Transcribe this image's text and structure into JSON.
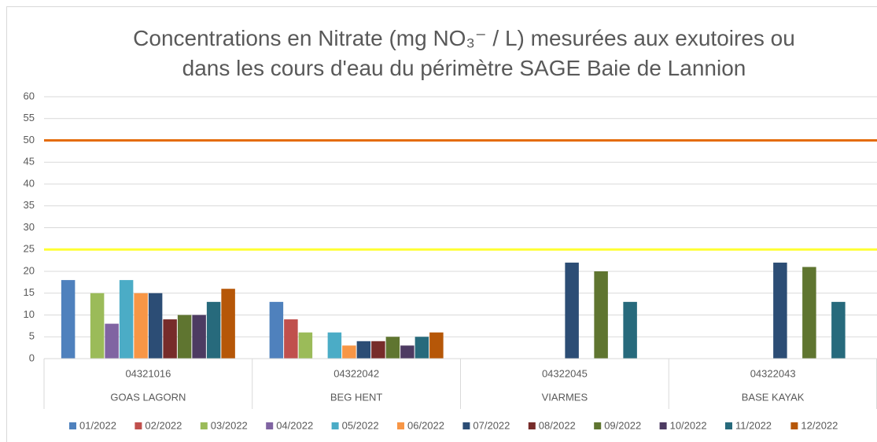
{
  "chart_data": {
    "type": "bar",
    "title": "Concentrations en Nitrate (mg NO₃⁻ / L) mesurées aux exutoires ou dans les cours d'eau du périmètre SAGE Baie de Lannion",
    "categories": [
      "04321016",
      "04322042",
      "04322045",
      "04322043"
    ],
    "category_groups": [
      "GOAS LAGORN",
      "BEG HENT",
      "VIARMES",
      "BASE KAYAK"
    ],
    "series": [
      {
        "name": "01/2022",
        "color": "#4f81bd",
        "values": [
          18,
          13,
          null,
          null
        ]
      },
      {
        "name": "02/2022",
        "color": "#c0504d",
        "values": [
          null,
          9,
          null,
          null
        ]
      },
      {
        "name": "03/2022",
        "color": "#9bbb59",
        "values": [
          15,
          6,
          null,
          null
        ]
      },
      {
        "name": "04/2022",
        "color": "#8064a2",
        "values": [
          8,
          null,
          null,
          null
        ]
      },
      {
        "name": "05/2022",
        "color": "#4bacc6",
        "values": [
          18,
          6,
          null,
          null
        ]
      },
      {
        "name": "06/2022",
        "color": "#f79646",
        "values": [
          15,
          3,
          null,
          null
        ]
      },
      {
        "name": "07/2022",
        "color": "#2c4d75",
        "values": [
          15,
          4,
          22,
          22
        ]
      },
      {
        "name": "08/2022",
        "color": "#772c2a",
        "values": [
          9,
          4,
          null,
          null
        ]
      },
      {
        "name": "09/2022",
        "color": "#5f7530",
        "values": [
          10,
          5,
          20,
          21
        ]
      },
      {
        "name": "10/2022",
        "color": "#4d3b62",
        "values": [
          10,
          3,
          null,
          null
        ]
      },
      {
        "name": "11/2022",
        "color": "#276a7c",
        "values": [
          13,
          5,
          13,
          13
        ]
      },
      {
        "name": "12/2022",
        "color": "#b65708",
        "values": [
          16,
          6,
          null,
          null
        ]
      }
    ],
    "reference_lines": [
      {
        "value": 50,
        "color": "#e46c0a"
      },
      {
        "value": 25,
        "color": "#ffff33"
      }
    ],
    "ylim": [
      0,
      60
    ],
    "yticks": [
      0,
      5,
      10,
      15,
      20,
      25,
      30,
      35,
      40,
      45,
      50,
      55,
      60
    ],
    "grid": true,
    "legend": "bottom"
  }
}
